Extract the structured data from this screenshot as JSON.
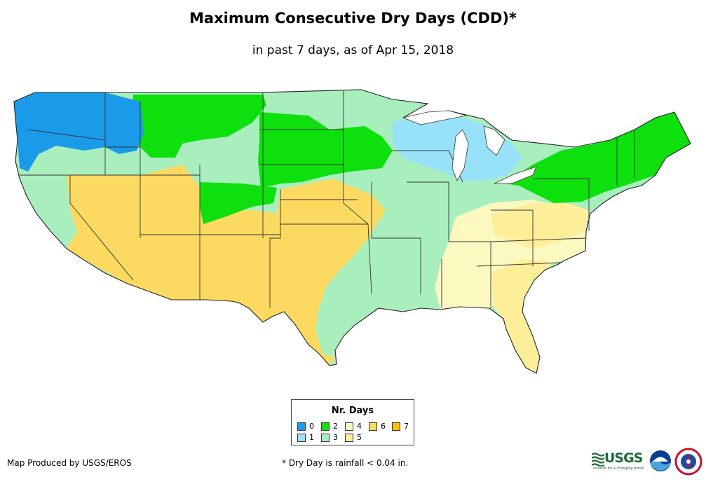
{
  "title": "Maximum Consecutive Dry Days (CDD)*",
  "subtitle": "in past 7 days, as of Apr 15, 2018",
  "legend": {
    "title": "Nr. Days",
    "items": [
      {
        "value": "0",
        "color": "#1a9bea"
      },
      {
        "value": "1",
        "color": "#97e2f8"
      },
      {
        "value": "2",
        "color": "#0ee00e"
      },
      {
        "value": "3",
        "color": "#a9efbe"
      },
      {
        "value": "4",
        "color": "#fbf8c0"
      },
      {
        "value": "5",
        "color": "#fdee9a"
      },
      {
        "value": "6",
        "color": "#fcda62"
      },
      {
        "value": "7",
        "color": "#f9c20e"
      }
    ]
  },
  "footer": {
    "credit": "Map Produced by USGS/EROS",
    "footnote": "* Dry Day is rainfall < 0.04 in."
  },
  "logos": {
    "usgs_name": "USGS",
    "usgs_tagline": "science for a changing world"
  }
}
